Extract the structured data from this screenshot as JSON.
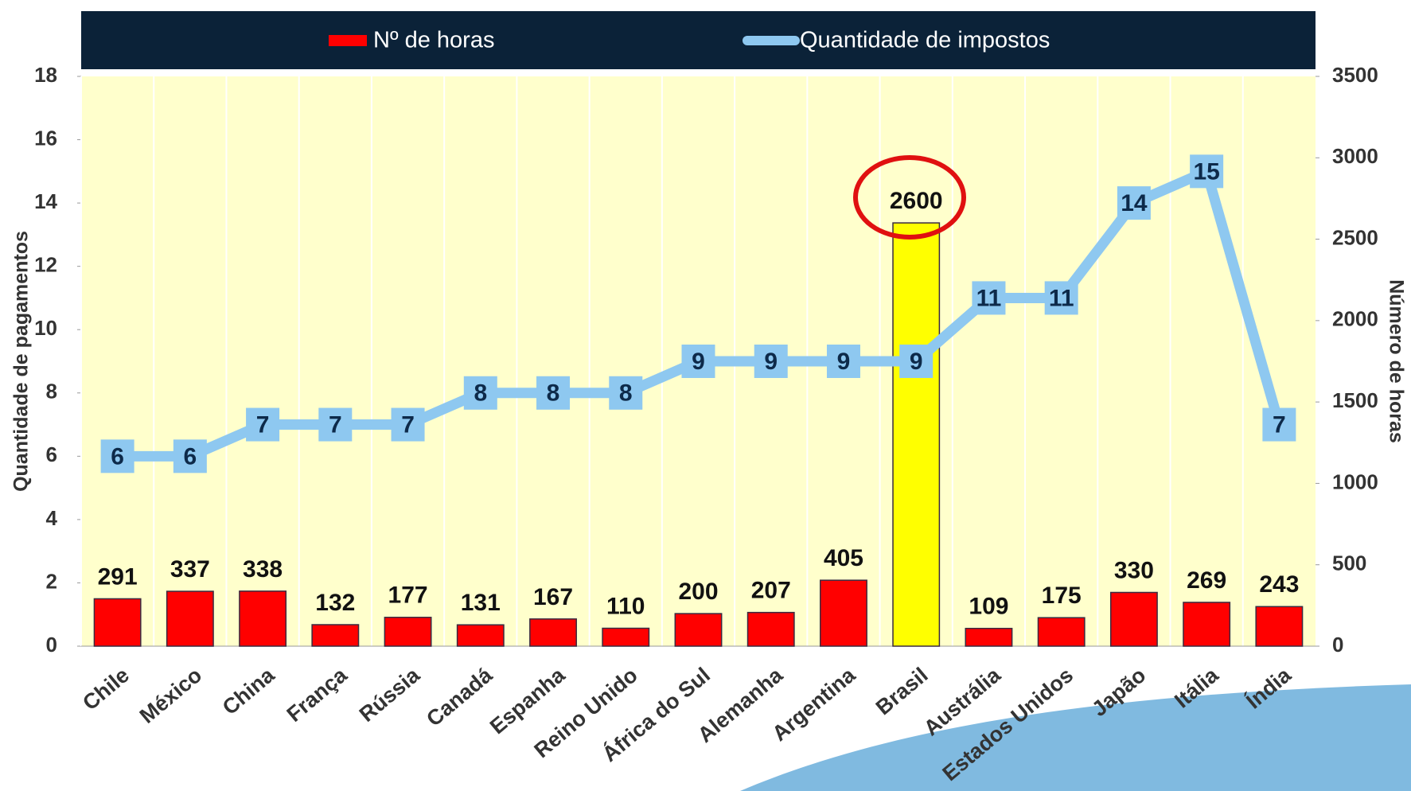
{
  "chart_data": {
    "type": "combo",
    "categories": [
      "Chile",
      "México",
      "China",
      "França",
      "Rússia",
      "Canadá",
      "Espanha",
      "Reino Unido",
      "África do Sul",
      "Alemanha",
      "Argentina",
      "Brasil",
      "Austrália",
      "Estados Unidos",
      "Japão",
      "Itália",
      "Índia"
    ],
    "series": [
      {
        "name": "Nº de horas",
        "type": "bar",
        "axis": "y2",
        "color": "#ff0000",
        "colors": [
          "#ff0000",
          "#ff0000",
          "#ff0000",
          "#ff0000",
          "#ff0000",
          "#ff0000",
          "#ff0000",
          "#ff0000",
          "#ff0000",
          "#ff0000",
          "#ff0000",
          "#ffff00",
          "#ff0000",
          "#ff0000",
          "#ff0000",
          "#ff0000",
          "#ff0000"
        ],
        "values": [
          291,
          337,
          338,
          132,
          177,
          131,
          167,
          110,
          200,
          207,
          405,
          2600,
          109,
          175,
          330,
          269,
          243
        ]
      },
      {
        "name": "Quantidade de impostos",
        "type": "line",
        "color": "#8ec8f0",
        "values": [
          6,
          6,
          7,
          7,
          7,
          8,
          8,
          8,
          9,
          9,
          9,
          9,
          11,
          11,
          14,
          15,
          7
        ]
      }
    ],
    "ylabel": "Quantidade de pagamentos",
    "y2label": "Número de horas",
    "ylim": [
      0,
      18
    ],
    "yticks": [
      0,
      2,
      4,
      6,
      8,
      10,
      12,
      14,
      16,
      18
    ],
    "y2lim": [
      0,
      3500
    ],
    "y2ticks": [
      0,
      500,
      1000,
      1500,
      2000,
      2500,
      3000,
      3500
    ]
  }
}
